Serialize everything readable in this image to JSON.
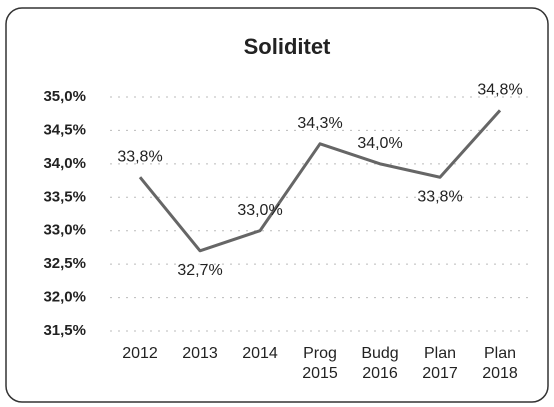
{
  "chart_data": {
    "type": "line",
    "title": "Soliditet",
    "categories": [
      "2012",
      "2013",
      "2014",
      "Prog 2015",
      "Budg 2016",
      "Plan 2017",
      "Plan 2018"
    ],
    "series": [
      {
        "name": "Soliditet",
        "color": "#666666",
        "values": [
          33.8,
          32.7,
          33.0,
          34.3,
          34.0,
          33.8,
          34.8
        ],
        "value_labels": [
          "33,8%",
          "32,7%",
          "33,0%",
          "34,3%",
          "34,0%",
          "33,8%",
          "34,8%"
        ]
      }
    ],
    "ylim": [
      31.5,
      35.0
    ],
    "yticks": [
      {
        "value": 31.5,
        "label": "31,5%"
      },
      {
        "value": 32.0,
        "label": "32,0%"
      },
      {
        "value": 32.5,
        "label": "32,5%"
      },
      {
        "value": 33.0,
        "label": "33,0%"
      },
      {
        "value": 33.5,
        "label": "33,5%"
      },
      {
        "value": 34.0,
        "label": "34,0%"
      },
      {
        "value": 34.5,
        "label": "34,5%"
      },
      {
        "value": 35.0,
        "label": "35,0%"
      }
    ],
    "grid": true
  }
}
